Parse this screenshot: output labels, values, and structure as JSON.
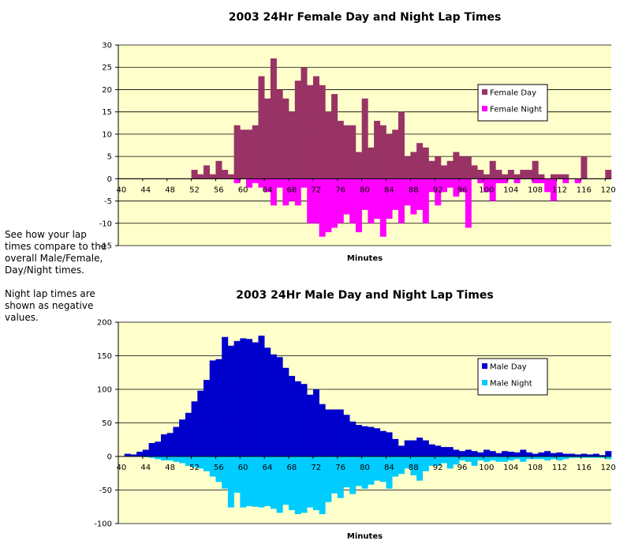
{
  "side_note": {
    "line1": "See how your lap times compare to the overall Male/Female, Day/Night times.",
    "line2": "Night lap times are shown as negative values."
  },
  "chart_data": [
    {
      "type": "bar",
      "title": "2003 24Hr Female Day and Night Lap Times",
      "xlabel": "Minutes",
      "ylabel": "",
      "ylim": [
        -15,
        30
      ],
      "yticks": [
        -15,
        -10,
        -5,
        0,
        5,
        10,
        15,
        20,
        25,
        30
      ],
      "xticks": [
        40,
        44,
        48,
        52,
        56,
        60,
        64,
        68,
        72,
        76,
        80,
        84,
        88,
        92,
        96,
        100,
        104,
        108,
        112,
        116,
        120
      ],
      "grid": true,
      "legend_position": "right",
      "x": [
        40,
        41,
        42,
        43,
        44,
        45,
        46,
        47,
        48,
        49,
        50,
        51,
        52,
        53,
        54,
        55,
        56,
        57,
        58,
        59,
        60,
        61,
        62,
        63,
        64,
        65,
        66,
        67,
        68,
        69,
        70,
        71,
        72,
        73,
        74,
        75,
        76,
        77,
        78,
        79,
        80,
        81,
        82,
        83,
        84,
        85,
        86,
        87,
        88,
        89,
        90,
        91,
        92,
        93,
        94,
        95,
        96,
        97,
        98,
        99,
        100,
        101,
        102,
        103,
        104,
        105,
        106,
        107,
        108,
        109,
        110,
        111,
        112,
        113,
        114,
        115,
        116,
        117,
        118,
        119,
        120
      ],
      "series": [
        {
          "name": "Female Day",
          "color": "#993366",
          "values": [
            0,
            0,
            0,
            0,
            0,
            0,
            0,
            0,
            0,
            0,
            0,
            0,
            2,
            1,
            3,
            1,
            4,
            2,
            1,
            12,
            11,
            11,
            12,
            23,
            18,
            27,
            20,
            18,
            15,
            22,
            25,
            21,
            23,
            21,
            15,
            19,
            13,
            12,
            12,
            6,
            18,
            7,
            13,
            12,
            10,
            11,
            15,
            5,
            6,
            8,
            7,
            4,
            5,
            3,
            4,
            6,
            5,
            5,
            3,
            2,
            1,
            4,
            2,
            1,
            2,
            1,
            2,
            2,
            4,
            1,
            0,
            1,
            1,
            1,
            0,
            0,
            5,
            0,
            0,
            0,
            2
          ]
        },
        {
          "name": "Female Night",
          "color": "#FF00FF",
          "values": [
            0,
            0,
            0,
            0,
            0,
            0,
            0,
            0,
            0,
            0,
            0,
            0,
            0,
            0,
            0,
            0,
            0,
            0,
            0,
            -1,
            0,
            -2,
            -1,
            -2,
            -3,
            -6,
            -2,
            -6,
            -5,
            -6,
            -2,
            -10,
            -10,
            -13,
            -12,
            -11,
            -10,
            -8,
            -10,
            -12,
            -7,
            -10,
            -9,
            -13,
            -9,
            -7,
            -10,
            -6,
            -8,
            -7,
            -10,
            -3,
            -6,
            -3,
            -2,
            -4,
            -3,
            -11,
            0,
            -1,
            -3,
            -5,
            -1,
            -1,
            0,
            -1,
            0,
            0,
            -1,
            -1,
            -3,
            -5,
            0,
            -1,
            0,
            -1,
            0,
            0,
            0,
            0,
            0
          ]
        }
      ]
    },
    {
      "type": "bar",
      "title": "2003 24Hr Male Day and Night Lap Times",
      "xlabel": "Minutes",
      "ylabel": "",
      "ylim": [
        -100,
        200
      ],
      "yticks": [
        -100,
        -50,
        0,
        50,
        100,
        150,
        200
      ],
      "xticks": [
        40,
        44,
        48,
        52,
        56,
        60,
        64,
        68,
        72,
        76,
        80,
        84,
        88,
        92,
        96,
        100,
        104,
        108,
        112,
        116,
        120
      ],
      "grid": true,
      "legend_position": "right",
      "x": [
        40,
        41,
        42,
        43,
        44,
        45,
        46,
        47,
        48,
        49,
        50,
        51,
        52,
        53,
        54,
        55,
        56,
        57,
        58,
        59,
        60,
        61,
        62,
        63,
        64,
        65,
        66,
        67,
        68,
        69,
        70,
        71,
        72,
        73,
        74,
        75,
        76,
        77,
        78,
        79,
        80,
        81,
        82,
        83,
        84,
        85,
        86,
        87,
        88,
        89,
        90,
        91,
        92,
        93,
        94,
        95,
        96,
        97,
        98,
        99,
        100,
        101,
        102,
        103,
        104,
        105,
        106,
        107,
        108,
        109,
        110,
        111,
        112,
        113,
        114,
        115,
        116,
        117,
        118,
        119,
        120
      ],
      "series": [
        {
          "name": "Male Day",
          "color": "#0000CC",
          "values": [
            0,
            4,
            3,
            7,
            10,
            20,
            22,
            33,
            35,
            44,
            55,
            65,
            82,
            98,
            114,
            143,
            145,
            178,
            165,
            172,
            176,
            175,
            170,
            180,
            162,
            152,
            148,
            132,
            120,
            112,
            108,
            92,
            100,
            78,
            70,
            70,
            70,
            62,
            52,
            47,
            45,
            44,
            42,
            38,
            36,
            26,
            16,
            24,
            24,
            28,
            24,
            18,
            16,
            14,
            14,
            10,
            8,
            10,
            8,
            6,
            10,
            8,
            5,
            8,
            7,
            6,
            10,
            6,
            4,
            6,
            8,
            5,
            6,
            4,
            4,
            3,
            4,
            3,
            4,
            2,
            8
          ]
        },
        {
          "name": "Male Night",
          "color": "#00CCFF",
          "values": [
            0,
            0,
            0,
            0,
            -1,
            -2,
            -4,
            -6,
            -6,
            -8,
            -10,
            -14,
            -16,
            -18,
            -22,
            -30,
            -38,
            -48,
            -76,
            -54,
            -76,
            -74,
            -75,
            -76,
            -74,
            -78,
            -84,
            -72,
            -80,
            -86,
            -84,
            -76,
            -80,
            -86,
            -68,
            -55,
            -62,
            -46,
            -56,
            -44,
            -48,
            -42,
            -36,
            -38,
            -48,
            -30,
            -26,
            -18,
            -28,
            -36,
            -22,
            -14,
            -14,
            -10,
            -18,
            -12,
            -6,
            -8,
            -14,
            -6,
            -8,
            -6,
            -8,
            -8,
            -6,
            -4,
            -8,
            -4,
            -4,
            -4,
            -6,
            -4,
            -6,
            -4,
            -2,
            -2,
            -2,
            -2,
            -2,
            -2,
            -4
          ]
        }
      ]
    }
  ]
}
